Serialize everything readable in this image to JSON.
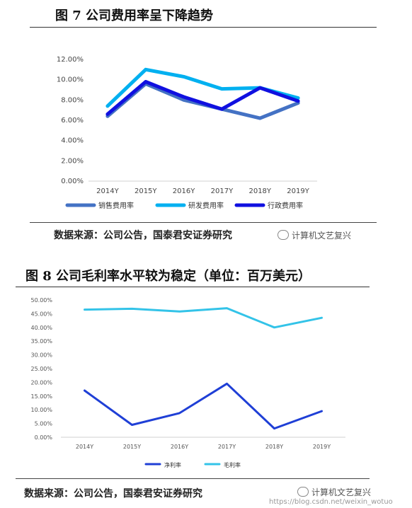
{
  "figure1": {
    "title": "图 7 公司费用率呈下降趋势",
    "source": "数据来源：公司公告，国泰君安证券研究",
    "watermark": "计算机文艺复兴",
    "colors": {
      "sales": "#4472C4",
      "rd": "#00B0F0",
      "admin": "#1010E0"
    }
  },
  "figure2": {
    "title": "图 8 公司毛利率水平较为稳定（单位：百万美元）",
    "source": "数据来源：公司公告，国泰君安证券研究",
    "watermark": "计算机文艺复兴",
    "url": "https://blog.csdn.net/weixin_wotuo",
    "colors": {
      "net": "#1F3FD6",
      "gross": "#33C3E8"
    }
  },
  "chart_data": [
    {
      "type": "line",
      "title": "图 7 公司费用率呈下降趋势",
      "categories": [
        "2014Y",
        "2015Y",
        "2016Y",
        "2017Y",
        "2018Y",
        "2019Y"
      ],
      "yticks": [
        "0.00%",
        "2.00%",
        "4.00%",
        "6.00%",
        "8.00%",
        "10.00%",
        "12.00%"
      ],
      "ylim": [
        0,
        12
      ],
      "grid": false,
      "legend": "bottom",
      "series": [
        {
          "name": "销售费用率",
          "values": [
            6.4,
            9.6,
            8.0,
            7.1,
            6.2,
            7.7
          ]
        },
        {
          "name": "研发费用率",
          "values": [
            7.4,
            11.0,
            10.3,
            9.1,
            9.2,
            8.2
          ]
        },
        {
          "name": "行政费用率",
          "values": [
            6.6,
            9.8,
            8.3,
            7.1,
            9.2,
            7.9
          ]
        }
      ]
    },
    {
      "type": "line",
      "title": "图 8 公司毛利率水平较为稳定（单位：百万美元）",
      "categories": [
        "2014Y",
        "2015Y",
        "2016Y",
        "2017Y",
        "2018Y",
        "2019Y"
      ],
      "yticks": [
        "0.00%",
        "5.00%",
        "10.00%",
        "15.00%",
        "20.00%",
        "25.00%",
        "30.00%",
        "35.00%",
        "40.00%",
        "45.00%",
        "50.00%"
      ],
      "ylim": [
        0,
        50
      ],
      "grid": false,
      "legend": "bottom",
      "series": [
        {
          "name": "净利率",
          "values": [
            17.0,
            4.5,
            8.8,
            19.5,
            3.2,
            9.5
          ]
        },
        {
          "name": "毛利率",
          "values": [
            46.5,
            46.8,
            45.8,
            47.0,
            40.0,
            43.5
          ]
        }
      ]
    }
  ]
}
